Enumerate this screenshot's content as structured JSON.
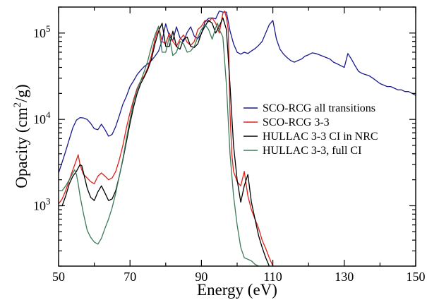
{
  "chart_data": {
    "type": "line",
    "title": "",
    "xlabel": "Energy (eV)",
    "ylabel_main": "Opacity (cm",
    "ylabel_sup": "2",
    "ylabel_tail": "/g)",
    "xlim": [
      50,
      150
    ],
    "ylim": [
      200,
      200000
    ],
    "yscale": "log",
    "x_ticks": [
      50,
      70,
      90,
      110,
      130,
      150
    ],
    "y_ticks": [
      {
        "value": 1000,
        "base": "10",
        "exp": "3"
      },
      {
        "value": 10000,
        "base": "10",
        "exp": "4"
      },
      {
        "value": 100000,
        "base": "10",
        "exp": "5"
      }
    ],
    "grid": false,
    "legend_position": "right-center",
    "series": [
      {
        "name": "SCO-RCG all transitions",
        "color": "#1a1a8c",
        "x": [
          50,
          51,
          52,
          53,
          54,
          55,
          56,
          57,
          58,
          59,
          60,
          61,
          62,
          63,
          64,
          65,
          66,
          67,
          68,
          69,
          70,
          71,
          72,
          73,
          74,
          75,
          76,
          77,
          78,
          79,
          80,
          81,
          82,
          83,
          84,
          85,
          86,
          87,
          88,
          89,
          90,
          91,
          92,
          93,
          94,
          95,
          96,
          97,
          98,
          99,
          100,
          101,
          102,
          103,
          104,
          105,
          106,
          107,
          108,
          109,
          110,
          111,
          112,
          113,
          114,
          115,
          116,
          117,
          118,
          119,
          120,
          121,
          122,
          123,
          124,
          125,
          126,
          127,
          128,
          129,
          130,
          131,
          132,
          133,
          134,
          135,
          136,
          137,
          138,
          139,
          140,
          141,
          142,
          143,
          144,
          145,
          146,
          147,
          148,
          149,
          150
        ],
        "y": [
          2400,
          3200,
          4300,
          5900,
          8000,
          9800,
          10500,
          10400,
          10000,
          9000,
          7800,
          7600,
          8800,
          7600,
          6400,
          6700,
          8300,
          11000,
          15000,
          18500,
          24000,
          28000,
          33000,
          37000,
          41000,
          44000,
          48000,
          54000,
          62000,
          82000,
          128000,
          92000,
          82000,
          118000,
          88000,
          80000,
          102000,
          118000,
          92000,
          86000,
          98000,
          135000,
          148000,
          150000,
          146000,
          180000,
          175000,
          175000,
          106000,
          75000,
          60000,
          57000,
          60000,
          58000,
          62000,
          66000,
          72000,
          80000,
          100000,
          125000,
          140000,
          85000,
          65000,
          57000,
          52000,
          48000,
          46000,
          48000,
          50000,
          54000,
          56000,
          59000,
          58000,
          56000,
          54000,
          52000,
          50000,
          46000,
          44000,
          42000,
          40000,
          58000,
          50000,
          42000,
          36000,
          34000,
          33000,
          32000,
          30000,
          28000,
          26000,
          25000,
          24000,
          24000,
          23000,
          22000,
          22000,
          21000,
          21000,
          20000,
          19000
        ]
      },
      {
        "name": "SCO-RCG 3-3",
        "color": "#e0201a",
        "x": [
          50,
          51,
          52,
          53,
          54,
          55,
          55.5,
          56,
          56.5,
          57,
          58,
          59,
          60,
          61,
          62,
          63,
          64,
          65,
          66,
          67,
          68,
          69,
          70,
          71,
          72,
          73,
          74,
          75,
          76,
          77,
          78,
          79,
          80,
          81,
          82,
          83,
          84,
          85,
          86,
          87,
          88,
          89,
          90,
          91,
          92,
          93,
          94,
          95,
          96,
          96.5,
          97,
          97.5,
          98,
          98.5,
          99,
          100,
          101,
          102,
          103,
          104,
          105,
          106,
          107,
          108,
          109,
          110
        ],
        "y": [
          1050,
          1200,
          1500,
          2000,
          2600,
          3400,
          3900,
          3000,
          2600,
          2300,
          2100,
          1900,
          1800,
          2200,
          2400,
          2200,
          2000,
          2100,
          2500,
          3400,
          5000,
          8000,
          12000,
          17000,
          23000,
          28000,
          32000,
          40000,
          55000,
          85000,
          120000,
          80000,
          75000,
          100000,
          80000,
          70000,
          85000,
          95000,
          78000,
          72000,
          80000,
          110000,
          120000,
          140000,
          135000,
          150000,
          130000,
          100000,
          170000,
          180000,
          150000,
          110000,
          12000,
          4000,
          2500,
          1900,
          1700,
          2500,
          1300,
          900,
          700,
          550,
          400,
          320,
          250,
          200
        ]
      },
      {
        "name": "HULLAC 3-3 CI in NRC",
        "color": "#000000",
        "x": [
          50,
          51,
          52,
          53,
          54,
          55,
          56,
          56.5,
          57,
          58,
          59,
          60,
          61,
          62,
          63,
          64,
          65,
          66,
          67,
          68,
          69,
          70,
          71,
          72,
          73,
          74,
          75,
          76,
          77,
          78,
          79,
          80,
          81,
          82,
          83,
          84,
          85,
          86,
          87,
          88,
          89,
          90,
          91,
          92,
          93,
          94,
          95,
          96,
          97,
          98,
          99,
          100,
          101,
          102,
          103,
          104,
          105,
          106,
          107,
          108,
          109
        ],
        "y": [
          1000,
          1000,
          1300,
          1800,
          2200,
          2500,
          3000,
          2900,
          2400,
          1600,
          1250,
          1150,
          1450,
          1700,
          1400,
          1150,
          1200,
          1500,
          2200,
          3400,
          5500,
          9000,
          14000,
          20000,
          26000,
          31000,
          38000,
          50000,
          75000,
          105000,
          130000,
          70000,
          70000,
          105000,
          70000,
          65000,
          85000,
          90000,
          70000,
          68000,
          75000,
          100000,
          120000,
          140000,
          130000,
          100000,
          120000,
          150000,
          110000,
          25000,
          5000,
          2000,
          1100,
          1700,
          2300,
          1100,
          700,
          450,
          330,
          250,
          200
        ]
      },
      {
        "name": "HULLAC 3-3, full CI",
        "color": "#3d7a5a",
        "x": [
          50,
          51,
          52,
          53,
          54,
          54.5,
          55,
          55.5,
          56,
          57,
          58,
          59,
          60,
          61,
          62,
          63,
          64,
          65,
          66,
          67,
          68,
          69,
          70,
          71,
          72,
          73,
          74,
          75,
          76,
          77,
          78,
          79,
          80,
          81,
          82,
          83,
          84,
          85,
          86,
          87,
          88,
          89,
          90,
          91,
          92,
          93,
          94,
          94.5,
          95,
          96,
          97,
          98,
          99,
          100,
          101,
          102,
          103,
          104,
          105,
          106
        ],
        "y": [
          1500,
          1500,
          1700,
          2000,
          2400,
          2600,
          2300,
          1800,
          1300,
          800,
          520,
          430,
          380,
          360,
          420,
          550,
          700,
          950,
          1400,
          2200,
          3500,
          6000,
          10000,
          16000,
          22000,
          28000,
          36000,
          48000,
          70000,
          95000,
          120000,
          60000,
          60000,
          90000,
          55000,
          60000,
          80000,
          75000,
          60000,
          62000,
          70000,
          90000,
          110000,
          125000,
          110000,
          85000,
          115000,
          130000,
          110000,
          90000,
          25000,
          4000,
          1300,
          600,
          330,
          250,
          240,
          230,
          210,
          200
        ]
      }
    ]
  }
}
